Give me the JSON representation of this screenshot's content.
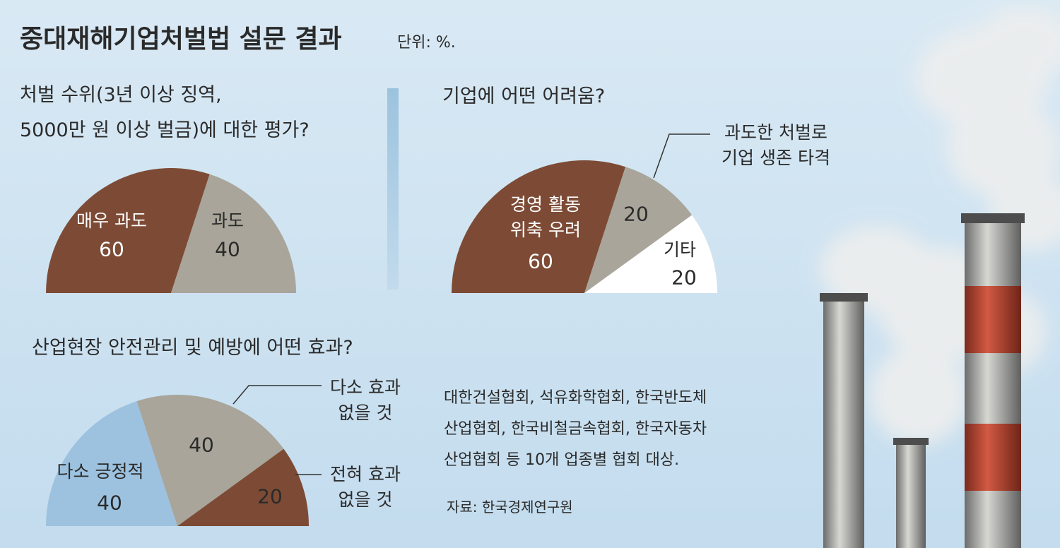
{
  "title": "중대재해기업처벌법 설문 결과",
  "unit": "단위: %.",
  "note": "대한건설협회, 석유화학협회, 한국반도체\n산업협회, 한국비철금속협회, 한국자동차\n산업협회 등 10개 업종별 협회 대상.",
  "source": "자료: 한국경제연구원",
  "chart_data": [
    {
      "type": "pie",
      "title": "처벌 수위(3년 이상 징역,\n5000만 원 이상 벌금)에 대한 평가?",
      "categories": [
        "매우 과도",
        "과도"
      ],
      "values": [
        60,
        40
      ],
      "colors": [
        "#7d4b35",
        "#a9a59a"
      ]
    },
    {
      "type": "pie",
      "title": "기업에 어떤 어려움?",
      "categories": [
        "경영 활동\n위축 우려",
        "과도한 처벌로\n기업 생존 타격",
        "기타"
      ],
      "values": [
        60,
        20,
        20
      ],
      "colors": [
        "#7d4b35",
        "#a9a59a",
        "#ffffff"
      ]
    },
    {
      "type": "pie",
      "title": "산업현장 안전관리 및 예방에 어떤 효과?",
      "categories": [
        "다소 긍정적",
        "다소 효과\n없을 것",
        "전혀 효과\n없을 것"
      ],
      "values": [
        40,
        40,
        20
      ],
      "colors": [
        "#9dc2df",
        "#a9a59a",
        "#7d4b35"
      ]
    }
  ]
}
